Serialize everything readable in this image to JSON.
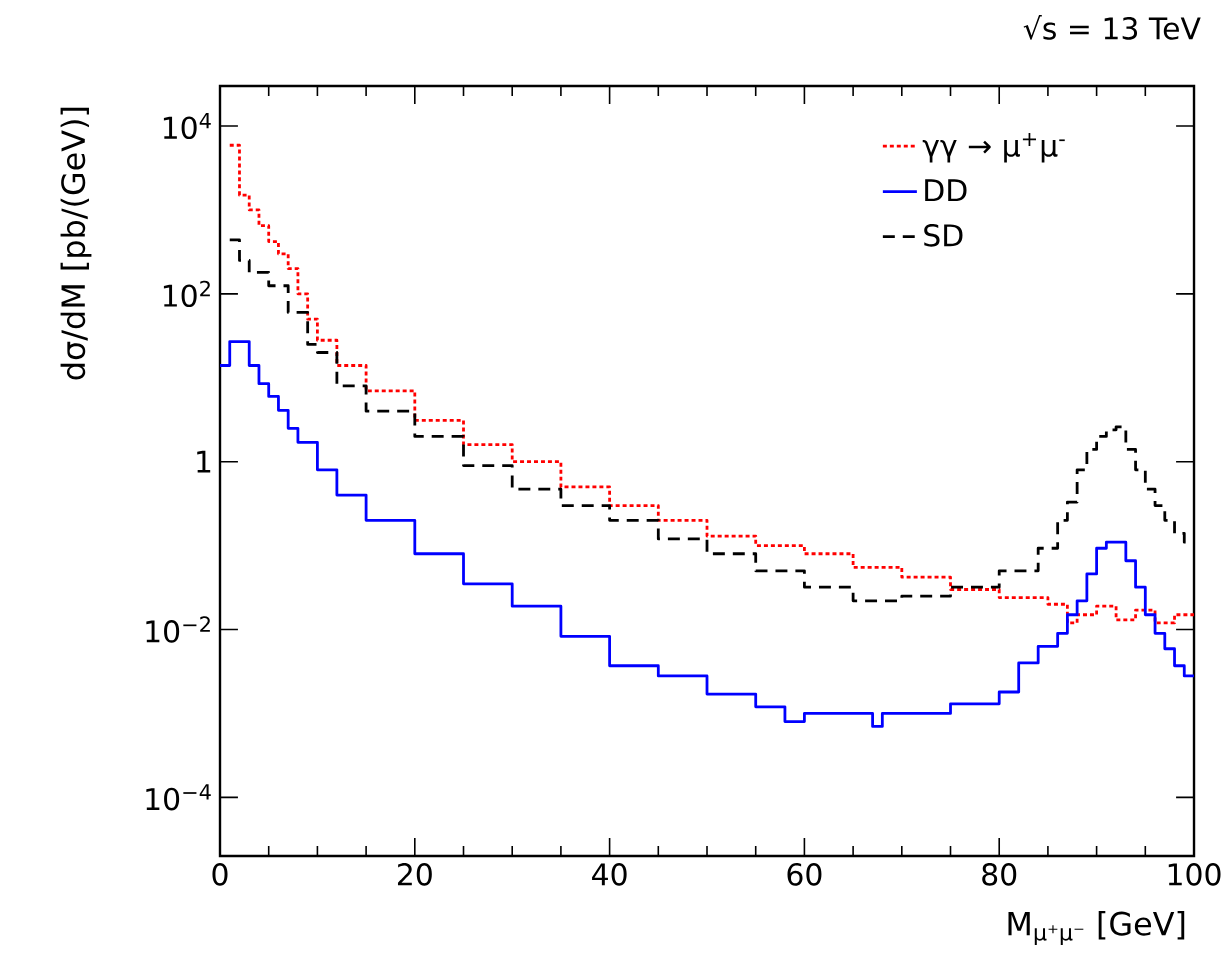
{
  "chart_data": {
    "type": "step",
    "xlabel": "M$_{μ⁺μ⁻}$ [GeV]",
    "ylabel": "dσ/dM [pb/(GeV)]",
    "annotations": [
      "√s = 13 TeV"
    ],
    "log": "y",
    "xlim": [
      0,
      100
    ],
    "ylim": [
      2e-05,
      30000
    ],
    "xticks": [
      0,
      20,
      40,
      60,
      80,
      100
    ],
    "yticks": [
      {
        "value": 10000,
        "label": "10$^{4}$"
      },
      {
        "value": 100,
        "label": "10$^{2}$"
      },
      1,
      {
        "value": 0.01,
        "label": "10$^{−2}$"
      },
      {
        "value": 0.0001,
        "label": "10$^{−4}$"
      }
    ],
    "grid": false,
    "legend": "top right",
    "marker": "none",
    "series": [
      {
        "name": "γγ → μ$^{+}$μ$^{-}$",
        "color": "#ff0000",
        "line_style": "dotted",
        "x": [
          1,
          2,
          3,
          4,
          5,
          6,
          7,
          8,
          9,
          10,
          12,
          15,
          20,
          25,
          30,
          35,
          40,
          45,
          50,
          55,
          60,
          65,
          70,
          75,
          80,
          85,
          87,
          88,
          90,
          92,
          94,
          96,
          98,
          99,
          100
        ],
        "values": [
          5900,
          1500,
          1000,
          650,
          420,
          300,
          200,
          100,
          50,
          28,
          14,
          7,
          3.1,
          1.6,
          1.0,
          0.5,
          0.3,
          0.2,
          0.13,
          0.1,
          0.08,
          0.055,
          0.042,
          0.03,
          0.024,
          0.02,
          0.012,
          0.015,
          0.019,
          0.013,
          0.017,
          0.012,
          0.015,
          0.015,
          0.015
        ]
      },
      {
        "name": "DD",
        "color": "#0000ff",
        "line_style": "solid",
        "x": [
          0,
          1,
          2,
          3,
          4,
          5,
          6,
          7,
          8,
          10,
          12,
          15,
          20,
          25,
          30,
          35,
          40,
          45,
          50,
          55,
          58,
          60,
          65,
          67,
          68,
          70,
          75,
          80,
          82,
          84,
          86,
          87,
          88,
          89,
          90,
          91,
          92,
          93,
          94,
          95,
          96,
          97,
          98,
          99,
          100
        ],
        "values": [
          14,
          27,
          27,
          14,
          8.5,
          6,
          4.1,
          2.5,
          1.7,
          0.8,
          0.4,
          0.2,
          0.08,
          0.035,
          0.019,
          0.0083,
          0.0037,
          0.0028,
          0.0017,
          0.0012,
          0.0008,
          0.001,
          0.001,
          0.0007,
          0.001,
          0.001,
          0.0013,
          0.0018,
          0.004,
          0.0063,
          0.009,
          0.015,
          0.022,
          0.046,
          0.093,
          0.11,
          0.11,
          0.066,
          0.032,
          0.015,
          0.009,
          0.0059,
          0.0037,
          0.0028,
          0.0028
        ]
      },
      {
        "name": "SD",
        "color": "#000000",
        "line_style": "dashed",
        "x": [
          1,
          2,
          3,
          5,
          7,
          9,
          10,
          12,
          15,
          20,
          25,
          30,
          35,
          40,
          45,
          50,
          55,
          60,
          65,
          70,
          75,
          80,
          84,
          86,
          87,
          88,
          89,
          90,
          91,
          92,
          93,
          94,
          95,
          96,
          97,
          98,
          99,
          100
        ],
        "values": [
          440,
          250,
          180,
          125,
          60,
          25,
          20,
          8,
          4,
          2,
          0.9,
          0.47,
          0.3,
          0.2,
          0.12,
          0.08,
          0.05,
          0.032,
          0.022,
          0.025,
          0.032,
          0.05,
          0.093,
          0.2,
          0.33,
          0.8,
          1.4,
          2.0,
          2.4,
          2.6,
          1.4,
          0.8,
          0.47,
          0.3,
          0.2,
          0.14,
          0.11,
          0.11
        ]
      }
    ]
  }
}
